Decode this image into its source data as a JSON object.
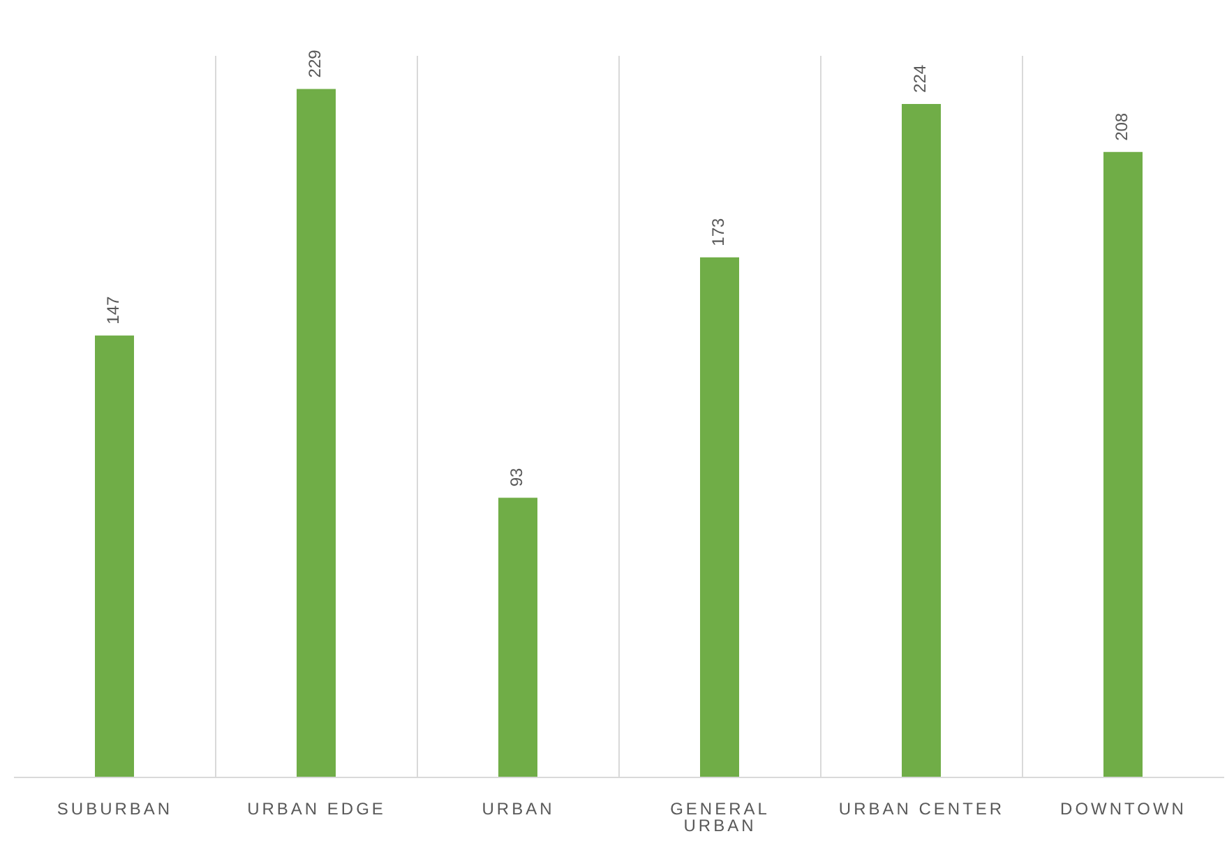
{
  "chart_data": {
    "type": "bar",
    "categories": [
      "SUBURBAN",
      "URBAN EDGE",
      "URBAN",
      "GENERAL URBAN",
      "URBAN CENTER",
      "DOWNTOWN"
    ],
    "values": [
      147,
      229,
      93,
      173,
      224,
      208
    ],
    "color": "#70ad47",
    "data_labels": true,
    "grid": "x"
  }
}
